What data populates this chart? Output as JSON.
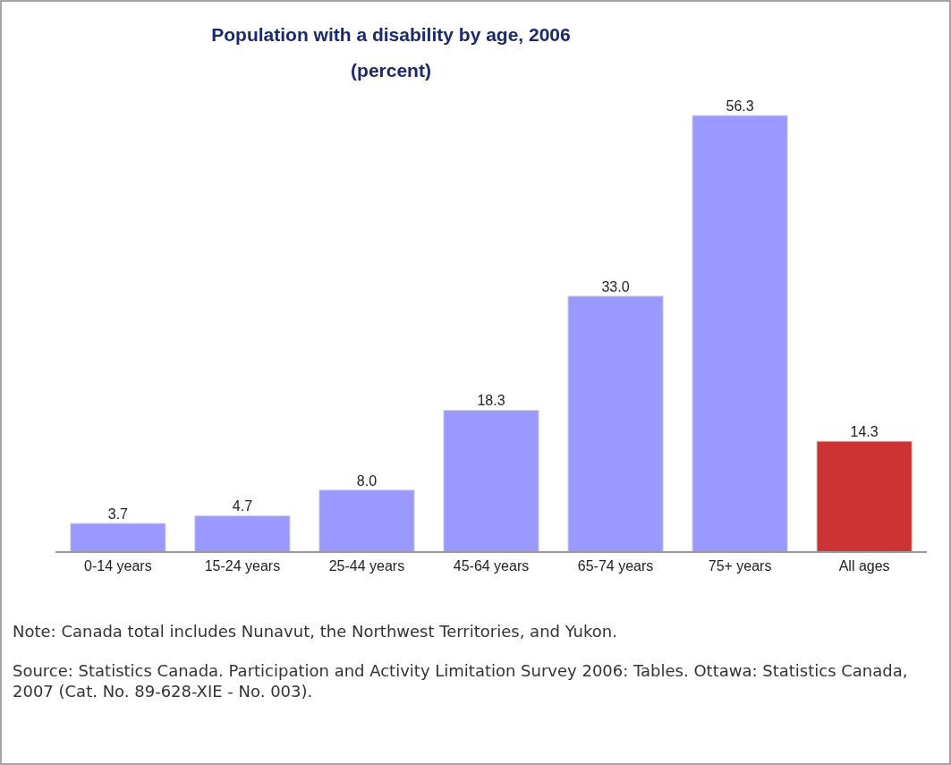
{
  "chart_data": {
    "type": "bar",
    "title": "Population with a disability by age, 2006",
    "subtitle": "(percent)",
    "categories": [
      "0-14 years",
      "15-24 years",
      "25-44 years",
      "45-64 years",
      "65-74 years",
      "75+ years",
      "All ages"
    ],
    "values": [
      3.7,
      4.7,
      8.0,
      18.3,
      33.0,
      56.3,
      14.3
    ],
    "value_labels": [
      "3.7",
      "4.7",
      "8.0",
      "18.3",
      "33.0",
      "56.3",
      "14.3"
    ],
    "colors": [
      "#9999ff",
      "#9999ff",
      "#9999ff",
      "#9999ff",
      "#9999ff",
      "#9999ff",
      "#cc3333"
    ],
    "annotations": [
      "Note: Canada total includes Nunavut, the Northwest Territories, and Yukon.",
      "Source: Statistics Canada. Participation and Activity Limitation Survey 2006: Tables. Ottawa: Statistics Canada, 2007 (Cat. No. 89-628-XIE - No. 003)."
    ]
  }
}
